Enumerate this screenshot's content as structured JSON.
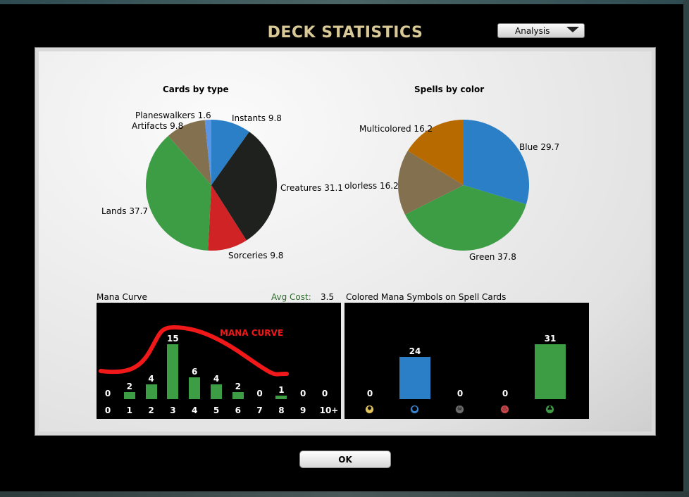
{
  "window": {
    "title": "DECK STATISTICS"
  },
  "view_dropdown": {
    "selected": "Analysis"
  },
  "cards_by_type": {
    "title": "Cards by type",
    "slices": [
      {
        "label": "Instants",
        "value": 9.8,
        "color": "#2a7fc6"
      },
      {
        "label": "Creatures",
        "value": 31.1,
        "color": "#1e211e"
      },
      {
        "label": "Sorceries",
        "value": 9.8,
        "color": "#cf2326"
      },
      {
        "label": "Lands",
        "value": 37.7,
        "color": "#3c9d44"
      },
      {
        "label": "Artifacts",
        "value": 9.8,
        "color": "#83704f"
      },
      {
        "label": "Planeswalkers",
        "value": 1.6,
        "color": "#5a95e6"
      }
    ],
    "display_labels": [
      "Instants 9.8",
      "Creatures 31.1",
      "Sorceries 9.8",
      "Lands 37.7",
      "Artifacts 9.8",
      "Planeswalkers 1.6"
    ]
  },
  "spells_by_color": {
    "title": "Spells by color",
    "slices": [
      {
        "label": "Blue",
        "value": 29.7,
        "color": "#2a7fc6"
      },
      {
        "label": "Green",
        "value": 37.8,
        "color": "#3c9d44"
      },
      {
        "label": "Colorless",
        "value": 16.2,
        "color": "#83704f"
      },
      {
        "label": "Multicolored",
        "value": 16.2,
        "color": "#b76a00"
      }
    ],
    "display_labels": [
      "Blue 29.7",
      "Green 37.8",
      "olorless 16.2",
      "Multicolored 16.2"
    ]
  },
  "mana_curve": {
    "caption": "Mana Curve",
    "avg_cost_label": "Avg Cost:",
    "avg_cost_value": "3.5",
    "overlay_label": "MANA CURVE",
    "bar_color": "#3c9d44",
    "curve_color": "#f01818",
    "categories": [
      "0",
      "1",
      "2",
      "3",
      "4",
      "5",
      "6",
      "7",
      "8",
      "9",
      "10+"
    ],
    "values": [
      0,
      2,
      4,
      15,
      6,
      4,
      2,
      0,
      1,
      0,
      0
    ],
    "value_labels": [
      "0",
      "2",
      "4",
      "15",
      "6",
      "4",
      "2",
      "0",
      "1",
      "0",
      "0"
    ]
  },
  "colored_symbols": {
    "caption": "Colored Mana Symbols on Spell Cards",
    "symbols": [
      {
        "name": "white-mana-icon",
        "value": 0,
        "label": "0",
        "bar_color": "#e7d9a0",
        "icon_color": "#e6c65a"
      },
      {
        "name": "blue-mana-icon",
        "value": 24,
        "label": "24",
        "bar_color": "#2a7fc6",
        "icon_color": "#3b86d6"
      },
      {
        "name": "black-mana-icon",
        "value": 0,
        "label": "0",
        "bar_color": "#555555",
        "icon_color": "#6e6e6e"
      },
      {
        "name": "red-mana-icon",
        "value": 0,
        "label": "0",
        "bar_color": "#cf2326",
        "icon_color": "#c7474a"
      },
      {
        "name": "green-mana-icon",
        "value": 31,
        "label": "31",
        "bar_color": "#3c9d44",
        "icon_color": "#3c9d44"
      }
    ]
  },
  "chart_data": [
    {
      "type": "pie",
      "title": "Cards by type",
      "categories": [
        "Instants",
        "Creatures",
        "Sorceries",
        "Lands",
        "Artifacts",
        "Planeswalkers"
      ],
      "values": [
        9.8,
        31.1,
        9.8,
        37.7,
        9.8,
        1.6
      ]
    },
    {
      "type": "pie",
      "title": "Spells by color",
      "categories": [
        "Blue",
        "Green",
        "Colorless",
        "Multicolored"
      ],
      "values": [
        29.7,
        37.8,
        16.2,
        16.2
      ]
    },
    {
      "type": "bar",
      "title": "Mana Curve",
      "categories": [
        "0",
        "1",
        "2",
        "3",
        "4",
        "5",
        "6",
        "7",
        "8",
        "9",
        "10+"
      ],
      "values": [
        0,
        2,
        4,
        15,
        6,
        4,
        2,
        0,
        1,
        0,
        0
      ]
    },
    {
      "type": "bar",
      "title": "Colored Mana Symbols on Spell Cards",
      "categories": [
        "White",
        "Blue",
        "Black",
        "Red",
        "Green"
      ],
      "values": [
        0,
        24,
        0,
        0,
        31
      ]
    }
  ],
  "footer": {
    "ok_label": "OK"
  }
}
